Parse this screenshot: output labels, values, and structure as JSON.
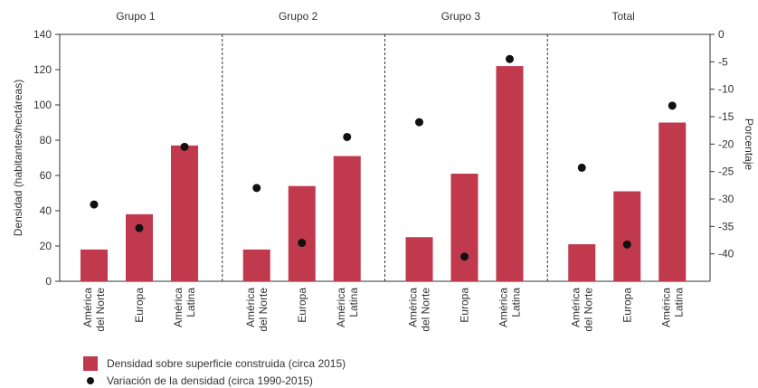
{
  "chart_data": {
    "type": "bar",
    "groups": [
      "Grupo 1",
      "Grupo 2",
      "Grupo 3",
      "Total"
    ],
    "categories": [
      "América del Norte",
      "Europa",
      "América Latina"
    ],
    "category_lines": [
      [
        "América",
        "del Norte"
      ],
      [
        "Europa"
      ],
      [
        "América",
        "Latina"
      ]
    ],
    "series": [
      {
        "name": "Densidad sobre superficie construida (circa 2015)",
        "kind": "bar",
        "axis": "left",
        "values": [
          [
            18,
            38,
            77
          ],
          [
            18,
            54,
            71
          ],
          [
            25,
            61,
            122
          ],
          [
            21,
            51,
            90
          ]
        ]
      },
      {
        "name": "Variación de la densidad (circa 1990-2015)",
        "kind": "point",
        "axis": "right",
        "values": [
          [
            -31,
            -35.3,
            -20.5
          ],
          [
            -28,
            -38,
            -18.7
          ],
          [
            -16,
            -40.5,
            -4.5
          ],
          [
            -24.3,
            -38.3,
            -13
          ]
        ]
      }
    ],
    "ylabel": "Densidad (habitantes/hectáreas)",
    "y2label": "Porcentaje",
    "ylim": [
      0,
      140
    ],
    "y2lim": [
      -45,
      0
    ],
    "yticks": [
      0,
      20,
      40,
      60,
      80,
      100,
      120,
      140
    ],
    "y2ticks": [
      0,
      -5,
      -10,
      -15,
      -20,
      -25,
      -30,
      -35,
      -40
    ],
    "colors": {
      "bar": "#c0394d",
      "point": "#111111",
      "axis": "#333333"
    },
    "grid": false,
    "legend_position": "bottom-left"
  }
}
